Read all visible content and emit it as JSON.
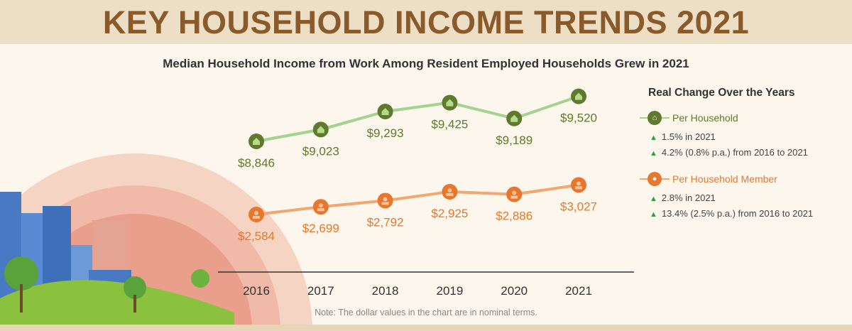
{
  "title": "KEY HOUSEHOLD INCOME TRENDS 2021",
  "chart_data": {
    "type": "line",
    "title": "Median Household Income from Work Among Resident Employed Households Grew in 2021",
    "categories": [
      "2016",
      "2017",
      "2018",
      "2019",
      "2020",
      "2021"
    ],
    "series": [
      {
        "name": "Per Household",
        "values": [
          8846,
          9023,
          9293,
          9425,
          9189,
          9520
        ],
        "labels": [
          "$8,846",
          "$9,023",
          "$9,293",
          "$9,425",
          "$9,189",
          "$9,520"
        ],
        "color": "#5f7a2e",
        "line_color": "#a3d38e",
        "icon": "house-icon"
      },
      {
        "name": "Per Household Member",
        "values": [
          2584,
          2699,
          2792,
          2925,
          2886,
          3027
        ],
        "labels": [
          "$2,584",
          "$2,699",
          "$2,792",
          "$2,925",
          "$2,886",
          "$3,027"
        ],
        "color": "#e8772e",
        "line_color": "#f2a672",
        "icon": "person-icon"
      }
    ],
    "grid": false,
    "legend_position": "right"
  },
  "legend": {
    "title": "Real Change Over the Years",
    "household": {
      "label": "Per Household",
      "stats": [
        "1.5% in 2021",
        "4.2% (0.8% p.a.) from 2016 to 2021"
      ]
    },
    "member": {
      "label": "Per Household Member",
      "stats": [
        "2.8% in 2021",
        "13.4% (2.5% p.a.) from 2016 to 2021"
      ]
    }
  },
  "note": "Note: The dollar values in the chart are in nominal terms."
}
